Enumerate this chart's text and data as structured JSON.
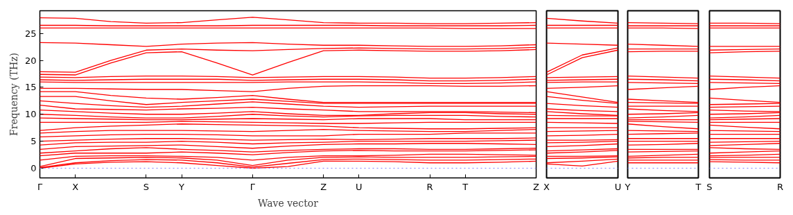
{
  "chart_data": [
    {
      "type": "line",
      "ylabel": "Frequency (THz)",
      "xlabel": "Wave vector",
      "grid": false,
      "line_style": "solid",
      "marker": "none",
      "categories": [
        "Γ",
        "X",
        null,
        "S",
        "Y",
        null,
        "Γ",
        null,
        "Z",
        "U",
        null,
        "R",
        "T",
        null,
        "Z"
      ],
      "ylim": [
        -1.8,
        29.2
      ],
      "yticks": [
        0,
        5,
        10,
        15,
        20,
        25
      ],
      "ref_lines": [
        {
          "axis": "y",
          "value": 0,
          "color": "#8080ff",
          "line_style": "dotted"
        }
      ],
      "series": [
        {
          "color": "#ff0000",
          "values": [
            0,
            0.8,
            1.1,
            1.2,
            1.0,
            0.5,
            0,
            0.3,
            1.3,
            1.3,
            1.2,
            1.0,
            1.0,
            1.1,
            1.3
          ]
        },
        {
          "color": "#ff0000",
          "values": [
            0.1,
            1.0,
            1.4,
            1.6,
            1.5,
            1.0,
            0.2,
            0.9,
            1.6,
            1.7,
            1.6,
            1.5,
            1.5,
            1.6,
            1.7
          ]
        },
        {
          "color": "#ff0000",
          "values": [
            0.3,
            1.8,
            1.9,
            2.0,
            1.9,
            1.5,
            0.5,
            1.5,
            2.0,
            2.1,
            2.0,
            2.0,
            2.0,
            2.1,
            2.2
          ]
        },
        {
          "color": "#ff0000",
          "values": [
            1.5,
            2.2,
            2.3,
            2.3,
            2.2,
            2.0,
            1.5,
            2.0,
            2.3,
            2.3,
            2.4,
            2.6,
            2.6,
            2.5,
            2.4
          ]
        },
        {
          "color": "#ff0000",
          "values": [
            2.3,
            2.8,
            2.8,
            2.8,
            3.0,
            2.8,
            2.5,
            2.9,
            3.2,
            3.3,
            3.2,
            3.2,
            3.2,
            3.3,
            3.4
          ]
        },
        {
          "color": "#ff0000",
          "values": [
            2.8,
            3.2,
            3.6,
            3.8,
            3.5,
            3.3,
            3.0,
            3.3,
            3.5,
            3.6,
            3.6,
            3.5,
            3.5,
            3.6,
            3.7
          ]
        },
        {
          "color": "#ff0000",
          "values": [
            3.5,
            4.0,
            4.1,
            4.2,
            4.3,
            4.0,
            3.7,
            4.1,
            4.4,
            4.5,
            4.5,
            4.6,
            4.6,
            4.5,
            4.4
          ]
        },
        {
          "color": "#ff0000",
          "values": [
            4.3,
            4.7,
            4.8,
            4.8,
            5.0,
            4.8,
            4.5,
            4.7,
            4.8,
            5.0,
            5.0,
            5.0,
            5.0,
            5.1,
            5.2
          ]
        },
        {
          "color": "#ff0000",
          "values": [
            5.0,
            5.2,
            5.4,
            5.5,
            5.5,
            5.4,
            5.2,
            5.3,
            5.4,
            5.3,
            5.4,
            5.5,
            5.5,
            5.5,
            5.6
          ]
        },
        {
          "color": "#ff0000",
          "values": [
            5.8,
            6.0,
            6.2,
            6.3,
            6.3,
            6.2,
            6.0,
            6.0,
            6.0,
            6.3,
            6.3,
            6.3,
            6.5,
            6.5,
            6.5
          ]
        },
        {
          "color": "#ff0000",
          "values": [
            6.5,
            6.8,
            7.0,
            7.0,
            7.0,
            6.9,
            6.8,
            7.0,
            7.2,
            7.0,
            6.9,
            6.8,
            6.8,
            7.0,
            7.2
          ]
        },
        {
          "color": "#ff0000",
          "values": [
            7.0,
            7.5,
            7.8,
            8.0,
            8.2,
            8.1,
            8.0,
            7.9,
            7.8,
            7.5,
            7.4,
            7.3,
            7.3,
            7.4,
            7.5
          ]
        },
        {
          "color": "#ff0000",
          "values": [
            8.5,
            8.5,
            8.5,
            8.5,
            8.7,
            8.6,
            8.5,
            8.4,
            8.3,
            8.3,
            8.4,
            8.5,
            8.5,
            8.5,
            8.5
          ]
        },
        {
          "color": "#ff0000",
          "values": [
            9.3,
            9.2,
            9.1,
            9.0,
            9.0,
            9.1,
            9.2,
            9.1,
            9.0,
            9.2,
            9.2,
            9.2,
            9.0,
            9.0,
            9.0
          ]
        },
        {
          "color": "#ff0000",
          "values": [
            10.0,
            9.8,
            9.5,
            9.3,
            9.3,
            9.6,
            10.0,
            9.7,
            9.5,
            9.7,
            9.8,
            9.8,
            9.8,
            9.6,
            9.5
          ]
        },
        {
          "color": "#ff0000",
          "values": [
            10.8,
            10.5,
            10.2,
            10.0,
            10.0,
            10.2,
            10.5,
            10.1,
            9.8,
            9.8,
            10.1,
            10.3,
            10.3,
            10.1,
            10.0
          ]
        },
        {
          "color": "#ff0000",
          "values": [
            11.7,
            11.0,
            10.9,
            10.8,
            11.0,
            11.1,
            11.3,
            11.0,
            10.8,
            10.5,
            10.5,
            10.5,
            10.5,
            10.4,
            10.3
          ]
        },
        {
          "color": "#ff0000",
          "values": [
            12.5,
            12.0,
            11.6,
            11.3,
            11.5,
            11.9,
            12.3,
            11.9,
            11.5,
            11.3,
            11.4,
            11.5,
            11.5,
            11.5,
            11.5
          ]
        },
        {
          "color": "#ff0000",
          "values": [
            13.3,
            13.3,
            12.5,
            11.8,
            12.2,
            12.5,
            12.8,
            12.4,
            12.0,
            12.0,
            12.0,
            12.0,
            12.0,
            12.0,
            12.0
          ]
        },
        {
          "color": "#ff0000",
          "values": [
            14.2,
            14.2,
            13.5,
            13.0,
            12.8,
            13.1,
            13.5,
            12.8,
            12.2,
            12.2,
            12.2,
            12.2,
            12.2,
            12.2,
            12.2
          ]
        },
        {
          "color": "#ff0000",
          "values": [
            14.8,
            14.8,
            14.7,
            14.6,
            14.6,
            14.4,
            14.2,
            14.8,
            15.2,
            15.3,
            15.3,
            15.3,
            15.2,
            15.2,
            15.3
          ]
        },
        {
          "color": "#ff0000",
          "values": [
            16.0,
            15.9,
            15.9,
            15.9,
            15.9,
            15.9,
            15.9,
            16.0,
            16.0,
            16.0,
            15.9,
            15.7,
            15.7,
            15.8,
            16.0
          ]
        },
        {
          "color": "#ff0000",
          "values": [
            16.4,
            16.3,
            16.4,
            16.5,
            16.5,
            16.5,
            16.3,
            16.4,
            16.5,
            16.5,
            16.4,
            16.2,
            16.2,
            16.3,
            16.5
          ]
        },
        {
          "color": "#ff0000",
          "values": [
            16.9,
            16.8,
            17.0,
            17.1,
            17.1,
            17.0,
            16.8,
            16.9,
            17.0,
            17.0,
            16.9,
            16.7,
            16.7,
            16.8,
            17.0
          ]
        },
        {
          "color": "#ff0000",
          "values": [
            17.4,
            17.3,
            19.5,
            21.4,
            21.6,
            19.5,
            17.3,
            19.6,
            21.8,
            21.9,
            21.8,
            21.7,
            21.7,
            21.8,
            22.0
          ]
        },
        {
          "color": "#ff0000",
          "values": [
            17.9,
            17.8,
            20.0,
            21.9,
            22.1,
            21.9,
            21.8,
            22.0,
            22.2,
            22.3,
            22.2,
            22.1,
            22.1,
            22.2,
            22.4
          ]
        },
        {
          "color": "#ff0000",
          "values": [
            23.3,
            23.2,
            22.9,
            22.6,
            23.0,
            23.2,
            23.3,
            23.0,
            22.8,
            22.8,
            22.7,
            22.6,
            22.6,
            22.7,
            22.9
          ]
        },
        {
          "color": "#ff0000",
          "values": [
            26.0,
            26.0,
            26.0,
            26.0,
            26.0,
            26.0,
            26.0,
            26.0,
            26.0,
            26.0,
            26.0,
            26.0,
            25.9,
            25.9,
            25.9
          ]
        },
        {
          "color": "#ff0000",
          "values": [
            26.5,
            26.5,
            26.4,
            26.4,
            26.4,
            26.4,
            26.5,
            26.5,
            26.5,
            26.5,
            26.4,
            26.4,
            26.4,
            26.4,
            26.5
          ]
        },
        {
          "color": "#ff0000",
          "values": [
            27.9,
            27.8,
            27.2,
            26.9,
            27.0,
            27.5,
            28.0,
            27.5,
            27.0,
            26.9,
            26.9,
            26.8,
            26.8,
            26.9,
            27.0
          ]
        }
      ]
    },
    {
      "type": "line",
      "grid": false,
      "line_style": "solid",
      "marker": "none",
      "tick_labels": "x",
      "categories": [
        "X",
        null,
        "U"
      ],
      "ylim": [
        -1.8,
        29.2
      ],
      "yticks": [
        0,
        5,
        10,
        15,
        20,
        25
      ],
      "ref_lines": [
        {
          "axis": "y",
          "value": 0,
          "color": "#8080ff",
          "line_style": "dotted"
        }
      ],
      "series": [
        {
          "color": "#ff0000",
          "values": [
            0.8,
            0.4,
            1.3
          ]
        },
        {
          "color": "#ff0000",
          "values": [
            1.0,
            1.3,
            1.7
          ]
        },
        {
          "color": "#ff0000",
          "values": [
            1.8,
            1.9,
            2.1
          ]
        },
        {
          "color": "#ff0000",
          "values": [
            2.2,
            2.2,
            2.3
          ]
        },
        {
          "color": "#ff0000",
          "values": [
            2.8,
            3.0,
            3.3
          ]
        },
        {
          "color": "#ff0000",
          "values": [
            3.2,
            3.4,
            3.6
          ]
        },
        {
          "color": "#ff0000",
          "values": [
            4.0,
            4.2,
            4.5
          ]
        },
        {
          "color": "#ff0000",
          "values": [
            4.7,
            4.8,
            5.0
          ]
        },
        {
          "color": "#ff0000",
          "values": [
            5.2,
            5.2,
            5.3
          ]
        },
        {
          "color": "#ff0000",
          "values": [
            6.0,
            6.1,
            6.3
          ]
        },
        {
          "color": "#ff0000",
          "values": [
            6.8,
            6.9,
            7.0
          ]
        },
        {
          "color": "#ff0000",
          "values": [
            7.5,
            7.5,
            7.5
          ]
        },
        {
          "color": "#ff0000",
          "values": [
            8.5,
            8.4,
            8.3
          ]
        },
        {
          "color": "#ff0000",
          "values": [
            9.2,
            9.2,
            9.2
          ]
        },
        {
          "color": "#ff0000",
          "values": [
            9.8,
            9.7,
            9.7
          ]
        },
        {
          "color": "#ff0000",
          "values": [
            10.5,
            10.1,
            9.8
          ]
        },
        {
          "color": "#ff0000",
          "values": [
            11.0,
            10.7,
            10.5
          ]
        },
        {
          "color": "#ff0000",
          "values": [
            12.0,
            11.6,
            11.3
          ]
        },
        {
          "color": "#ff0000",
          "values": [
            13.3,
            12.6,
            12.0
          ]
        },
        {
          "color": "#ff0000",
          "values": [
            14.2,
            13.2,
            12.2
          ]
        },
        {
          "color": "#ff0000",
          "values": [
            14.8,
            15.0,
            15.3
          ]
        },
        {
          "color": "#ff0000",
          "values": [
            15.9,
            16.0,
            16.0
          ]
        },
        {
          "color": "#ff0000",
          "values": [
            16.3,
            16.4,
            16.5
          ]
        },
        {
          "color": "#ff0000",
          "values": [
            16.8,
            16.9,
            17.0
          ]
        },
        {
          "color": "#ff0000",
          "values": [
            17.3,
            20.5,
            21.9
          ]
        },
        {
          "color": "#ff0000",
          "values": [
            17.8,
            21.0,
            22.3
          ]
        },
        {
          "color": "#ff0000",
          "values": [
            23.2,
            23.0,
            22.8
          ]
        },
        {
          "color": "#ff0000",
          "values": [
            26.0,
            26.0,
            26.0
          ]
        },
        {
          "color": "#ff0000",
          "values": [
            26.5,
            26.5,
            26.5
          ]
        },
        {
          "color": "#ff0000",
          "values": [
            27.8,
            27.3,
            26.9
          ]
        }
      ]
    },
    {
      "type": "line",
      "grid": false,
      "line_style": "solid",
      "marker": "none",
      "tick_labels": "x",
      "categories": [
        "Y",
        null,
        "T"
      ],
      "ylim": [
        -1.8,
        29.2
      ],
      "yticks": [
        0,
        5,
        10,
        15,
        20,
        25
      ],
      "ref_lines": [
        {
          "axis": "y",
          "value": 0,
          "color": "#8080ff",
          "line_style": "dotted"
        }
      ],
      "series": [
        {
          "color": "#ff0000",
          "values": [
            1.0,
            1.0,
            1.0
          ]
        },
        {
          "color": "#ff0000",
          "values": [
            1.5,
            1.5,
            1.5
          ]
        },
        {
          "color": "#ff0000",
          "values": [
            1.9,
            2.0,
            2.0
          ]
        },
        {
          "color": "#ff0000",
          "values": [
            2.2,
            2.4,
            2.6
          ]
        },
        {
          "color": "#ff0000",
          "values": [
            3.0,
            3.1,
            3.2
          ]
        },
        {
          "color": "#ff0000",
          "values": [
            3.5,
            3.5,
            3.5
          ]
        },
        {
          "color": "#ff0000",
          "values": [
            4.3,
            4.4,
            4.6
          ]
        },
        {
          "color": "#ff0000",
          "values": [
            5.0,
            5.0,
            5.0
          ]
        },
        {
          "color": "#ff0000",
          "values": [
            5.5,
            5.5,
            5.5
          ]
        },
        {
          "color": "#ff0000",
          "values": [
            6.3,
            6.4,
            6.5
          ]
        },
        {
          "color": "#ff0000",
          "values": [
            7.0,
            6.9,
            6.8
          ]
        },
        {
          "color": "#ff0000",
          "values": [
            8.2,
            7.7,
            7.3
          ]
        },
        {
          "color": "#ff0000",
          "values": [
            8.7,
            8.6,
            8.5
          ]
        },
        {
          "color": "#ff0000",
          "values": [
            9.0,
            9.0,
            9.0
          ]
        },
        {
          "color": "#ff0000",
          "values": [
            9.3,
            9.5,
            9.8
          ]
        },
        {
          "color": "#ff0000",
          "values": [
            10.0,
            10.1,
            10.3
          ]
        },
        {
          "color": "#ff0000",
          "values": [
            11.0,
            10.7,
            10.5
          ]
        },
        {
          "color": "#ff0000",
          "values": [
            11.5,
            11.5,
            11.5
          ]
        },
        {
          "color": "#ff0000",
          "values": [
            12.2,
            12.1,
            12.0
          ]
        },
        {
          "color": "#ff0000",
          "values": [
            12.8,
            12.5,
            12.2
          ]
        },
        {
          "color": "#ff0000",
          "values": [
            14.6,
            14.9,
            15.2
          ]
        },
        {
          "color": "#ff0000",
          "values": [
            15.9,
            15.8,
            15.7
          ]
        },
        {
          "color": "#ff0000",
          "values": [
            16.5,
            16.4,
            16.2
          ]
        },
        {
          "color": "#ff0000",
          "values": [
            17.1,
            16.9,
            16.7
          ]
        },
        {
          "color": "#ff0000",
          "values": [
            21.6,
            21.7,
            21.7
          ]
        },
        {
          "color": "#ff0000",
          "values": [
            22.1,
            22.1,
            22.1
          ]
        },
        {
          "color": "#ff0000",
          "values": [
            23.0,
            22.8,
            22.6
          ]
        },
        {
          "color": "#ff0000",
          "values": [
            26.0,
            26.0,
            25.9
          ]
        },
        {
          "color": "#ff0000",
          "values": [
            26.4,
            26.4,
            26.4
          ]
        },
        {
          "color": "#ff0000",
          "values": [
            27.0,
            26.9,
            26.8
          ]
        }
      ]
    },
    {
      "type": "line",
      "grid": false,
      "line_style": "solid",
      "marker": "none",
      "tick_labels": "x",
      "categories": [
        "S",
        null,
        "R"
      ],
      "ylim": [
        -1.8,
        29.2
      ],
      "yticks": [
        0,
        5,
        10,
        15,
        20,
        25
      ],
      "ref_lines": [
        {
          "axis": "y",
          "value": 0,
          "color": "#8080ff",
          "line_style": "dotted"
        }
      ],
      "series": [
        {
          "color": "#ff0000",
          "values": [
            1.2,
            1.1,
            1.0
          ]
        },
        {
          "color": "#ff0000",
          "values": [
            1.6,
            1.5,
            1.5
          ]
        },
        {
          "color": "#ff0000",
          "values": [
            2.0,
            2.0,
            2.0
          ]
        },
        {
          "color": "#ff0000",
          "values": [
            2.3,
            2.4,
            2.6
          ]
        },
        {
          "color": "#ff0000",
          "values": [
            2.8,
            3.0,
            3.2
          ]
        },
        {
          "color": "#ff0000",
          "values": [
            3.8,
            3.6,
            3.5
          ]
        },
        {
          "color": "#ff0000",
          "values": [
            4.2,
            4.4,
            4.6
          ]
        },
        {
          "color": "#ff0000",
          "values": [
            4.8,
            4.9,
            5.0
          ]
        },
        {
          "color": "#ff0000",
          "values": [
            5.5,
            5.5,
            5.5
          ]
        },
        {
          "color": "#ff0000",
          "values": [
            6.3,
            6.3,
            6.3
          ]
        },
        {
          "color": "#ff0000",
          "values": [
            7.0,
            6.9,
            6.8
          ]
        },
        {
          "color": "#ff0000",
          "values": [
            8.0,
            7.6,
            7.3
          ]
        },
        {
          "color": "#ff0000",
          "values": [
            8.5,
            8.5,
            8.5
          ]
        },
        {
          "color": "#ff0000",
          "values": [
            9.0,
            9.1,
            9.2
          ]
        },
        {
          "color": "#ff0000",
          "values": [
            9.3,
            9.5,
            9.8
          ]
        },
        {
          "color": "#ff0000",
          "values": [
            10.0,
            10.1,
            10.3
          ]
        },
        {
          "color": "#ff0000",
          "values": [
            10.8,
            10.6,
            10.5
          ]
        },
        {
          "color": "#ff0000",
          "values": [
            11.3,
            11.4,
            11.5
          ]
        },
        {
          "color": "#ff0000",
          "values": [
            11.8,
            11.9,
            12.0
          ]
        },
        {
          "color": "#ff0000",
          "values": [
            13.0,
            12.6,
            12.2
          ]
        },
        {
          "color": "#ff0000",
          "values": [
            14.6,
            15.0,
            15.3
          ]
        },
        {
          "color": "#ff0000",
          "values": [
            15.9,
            15.8,
            15.7
          ]
        },
        {
          "color": "#ff0000",
          "values": [
            16.5,
            16.4,
            16.2
          ]
        },
        {
          "color": "#ff0000",
          "values": [
            17.1,
            16.9,
            16.7
          ]
        },
        {
          "color": "#ff0000",
          "values": [
            21.4,
            21.6,
            21.7
          ]
        },
        {
          "color": "#ff0000",
          "values": [
            21.9,
            22.0,
            22.1
          ]
        },
        {
          "color": "#ff0000",
          "values": [
            22.6,
            22.6,
            22.6
          ]
        },
        {
          "color": "#ff0000",
          "values": [
            26.0,
            26.0,
            26.0
          ]
        },
        {
          "color": "#ff0000",
          "values": [
            26.4,
            26.4,
            26.4
          ]
        },
        {
          "color": "#ff0000",
          "values": [
            26.9,
            26.9,
            26.8
          ]
        }
      ]
    }
  ]
}
